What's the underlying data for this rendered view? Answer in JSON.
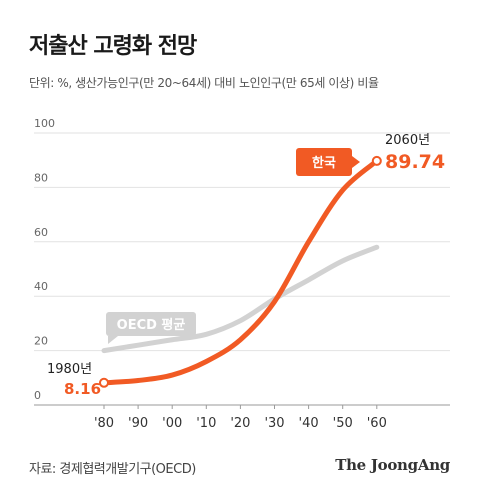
{
  "title": "저출산 고령화 전망",
  "subtitle": "단위: %, 생산가능인구(만 20~64세) 대비 노인인구(만 65세 이상) 비율",
  "source": "자료: 경제협력개발기구(OECD)",
  "brand": "The JoongAng",
  "colors": {
    "korea": "#f15a24",
    "oecd": "#d2d2d2",
    "text": "#222222",
    "grid": "#e2e2e2"
  },
  "chart_data": {
    "type": "line",
    "x": [
      1980,
      1990,
      2000,
      2010,
      2020,
      2030,
      2040,
      2050,
      2060
    ],
    "tick_labels": [
      "'80",
      "'90",
      "'00",
      "'10",
      "'20",
      "'30",
      "'40",
      "'50",
      "'60"
    ],
    "ylim": [
      0,
      100
    ],
    "yticks": [
      0,
      20,
      40,
      60,
      80,
      100
    ],
    "grid": true,
    "series": [
      {
        "name": "OECD 평균",
        "values": [
          20,
          22,
          24,
          26,
          31,
          39,
          46,
          53,
          58
        ]
      },
      {
        "name": "한국",
        "values": [
          8.16,
          9,
          11,
          16,
          24,
          38,
          60,
          79,
          89.74
        ]
      }
    ],
    "annotations": {
      "start_year": "1980년",
      "start_value": "8.16",
      "end_year": "2060년",
      "end_value": "89.74"
    }
  }
}
